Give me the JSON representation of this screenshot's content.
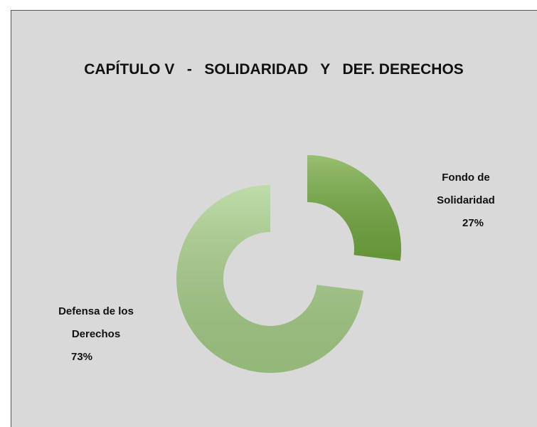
{
  "chart_data": {
    "type": "pie",
    "title": "CAPÍTULO V   -   SOLIDARIDAD   Y   DEF. DERECHOS",
    "categories": [
      "Fondo de Solidaridad",
      "Defensa de los Derechos"
    ],
    "values": [
      27,
      73
    ],
    "value_labels": [
      "27%",
      "73%"
    ],
    "colors": [
      "#74aa40",
      "#a8d08a"
    ],
    "donut": true
  }
}
